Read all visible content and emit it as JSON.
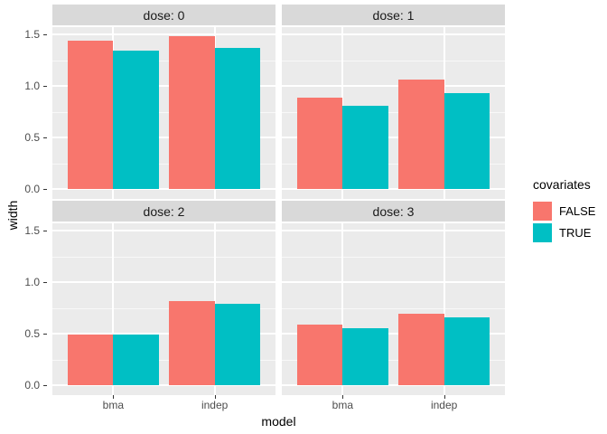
{
  "figure": {
    "y_axis_title": "width",
    "x_axis_title": "model"
  },
  "legend": {
    "title": "covariates",
    "items": [
      {
        "label": "FALSE",
        "color": "#F8766D"
      },
      {
        "label": "TRUE",
        "color": "#00BFC4"
      }
    ]
  },
  "axes": {
    "y_tick_labels": [
      "0.0",
      "0.5",
      "1.0",
      "1.5"
    ],
    "x_tick_labels": [
      "bma",
      "indep"
    ]
  },
  "colors": {
    "false_fill": "#F8766D",
    "true_fill": "#00BFC4",
    "panel_background": "#EBEBEB",
    "strip_background": "#D9D9D9",
    "gridline": "#FFFFFF",
    "axis_text": "#4D4D4D",
    "strip_text": "#1A1A1A"
  },
  "chart_data": {
    "type": "bar",
    "subtype": "grouped-faceted",
    "facet_variable": "dose",
    "xlabel": "model",
    "ylabel": "width",
    "legend_title": "covariates",
    "legend_position": "right",
    "grid": true,
    "categories": [
      "bma",
      "indep"
    ],
    "y_ticks": [
      0.0,
      0.5,
      1.0,
      1.5
    ],
    "y_minor_ticks": [
      0.25,
      0.75,
      1.25
    ],
    "ylim": [
      0,
      1.57
    ],
    "facets": [
      {
        "title": "dose: 0",
        "series": [
          {
            "name": "FALSE",
            "values": [
              1.44,
              1.48
            ]
          },
          {
            "name": "TRUE",
            "values": [
              1.34,
              1.37
            ]
          }
        ]
      },
      {
        "title": "dose: 1",
        "series": [
          {
            "name": "FALSE",
            "values": [
              0.89,
              1.06
            ]
          },
          {
            "name": "TRUE",
            "values": [
              0.81,
              0.93
            ]
          }
        ]
      },
      {
        "title": "dose: 2",
        "series": [
          {
            "name": "FALSE",
            "values": [
              0.49,
              0.82
            ]
          },
          {
            "name": "TRUE",
            "values": [
              0.49,
              0.79
            ]
          }
        ]
      },
      {
        "title": "dose: 3",
        "series": [
          {
            "name": "FALSE",
            "values": [
              0.59,
              0.69
            ]
          },
          {
            "name": "TRUE",
            "values": [
              0.55,
              0.66
            ]
          }
        ]
      }
    ]
  }
}
